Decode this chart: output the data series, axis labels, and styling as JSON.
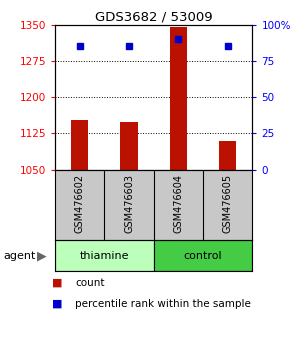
{
  "title": "GDS3682 / 53009",
  "samples": [
    "GSM476602",
    "GSM476603",
    "GSM476604",
    "GSM476605"
  ],
  "count_values": [
    1152,
    1148,
    1345,
    1110
  ],
  "percentile_values": [
    85,
    85,
    90,
    85
  ],
  "ylim_left": [
    1050,
    1350
  ],
  "ylim_right": [
    0,
    100
  ],
  "yticks_left": [
    1050,
    1125,
    1200,
    1275,
    1350
  ],
  "yticks_right": [
    0,
    25,
    50,
    75,
    100
  ],
  "ytick_labels_right": [
    "0",
    "25",
    "50",
    "75",
    "100%"
  ],
  "bar_color": "#bb1100",
  "dot_color": "#0000cc",
  "group_labels": [
    "thiamine",
    "control"
  ],
  "group_colors_thiamine": "#bbffbb",
  "group_colors_control": "#44cc44",
  "agent_label": "agent",
  "legend_count_label": "count",
  "legend_pct_label": "percentile rank within the sample",
  "bar_width": 0.35,
  "background_color": "#ffffff",
  "sample_bg_color": "#c8c8c8",
  "grid_color": "#000000"
}
